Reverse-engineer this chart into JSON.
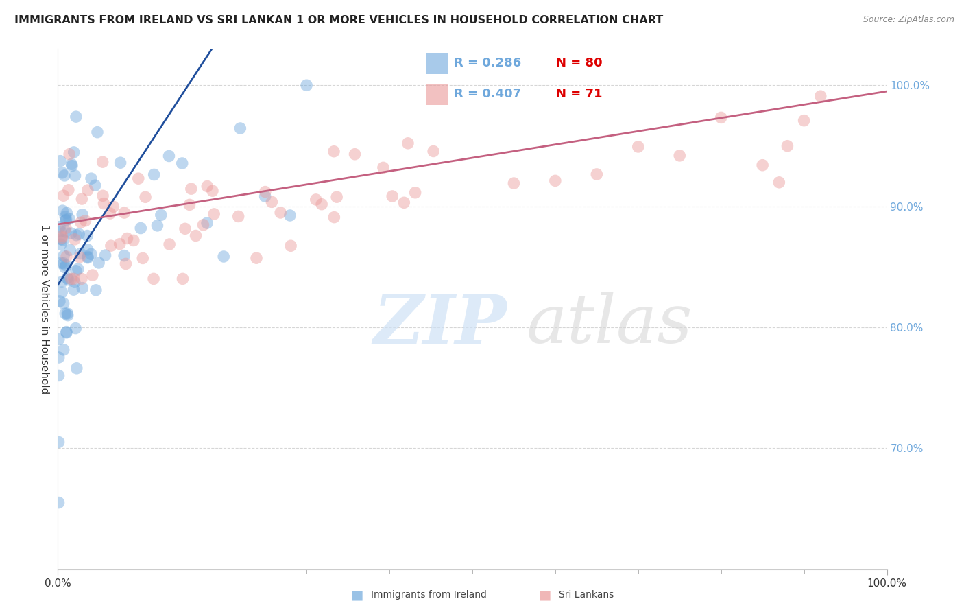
{
  "title": "IMMIGRANTS FROM IRELAND VS SRI LANKAN 1 OR MORE VEHICLES IN HOUSEHOLD CORRELATION CHART",
  "source": "Source: ZipAtlas.com",
  "ylabel": "1 or more Vehicles in Household",
  "r_ireland": "0.286",
  "n_ireland": "80",
  "r_srilanka": "0.407",
  "n_srilanka": "71",
  "color_ireland": "#6fa8dc",
  "color_srilanka": "#ea9999",
  "line_color_ireland": "#1f4e9c",
  "line_color_srilanka": "#c46080",
  "ytick_color": "#6fa8dc",
  "xmin": 0,
  "xmax": 100,
  "ymin": 60,
  "ymax": 103,
  "yticks": [
    70,
    80,
    90,
    100
  ],
  "ytick_labels": [
    "70.0%",
    "80.0%",
    "90.0%",
    "100.0%"
  ]
}
